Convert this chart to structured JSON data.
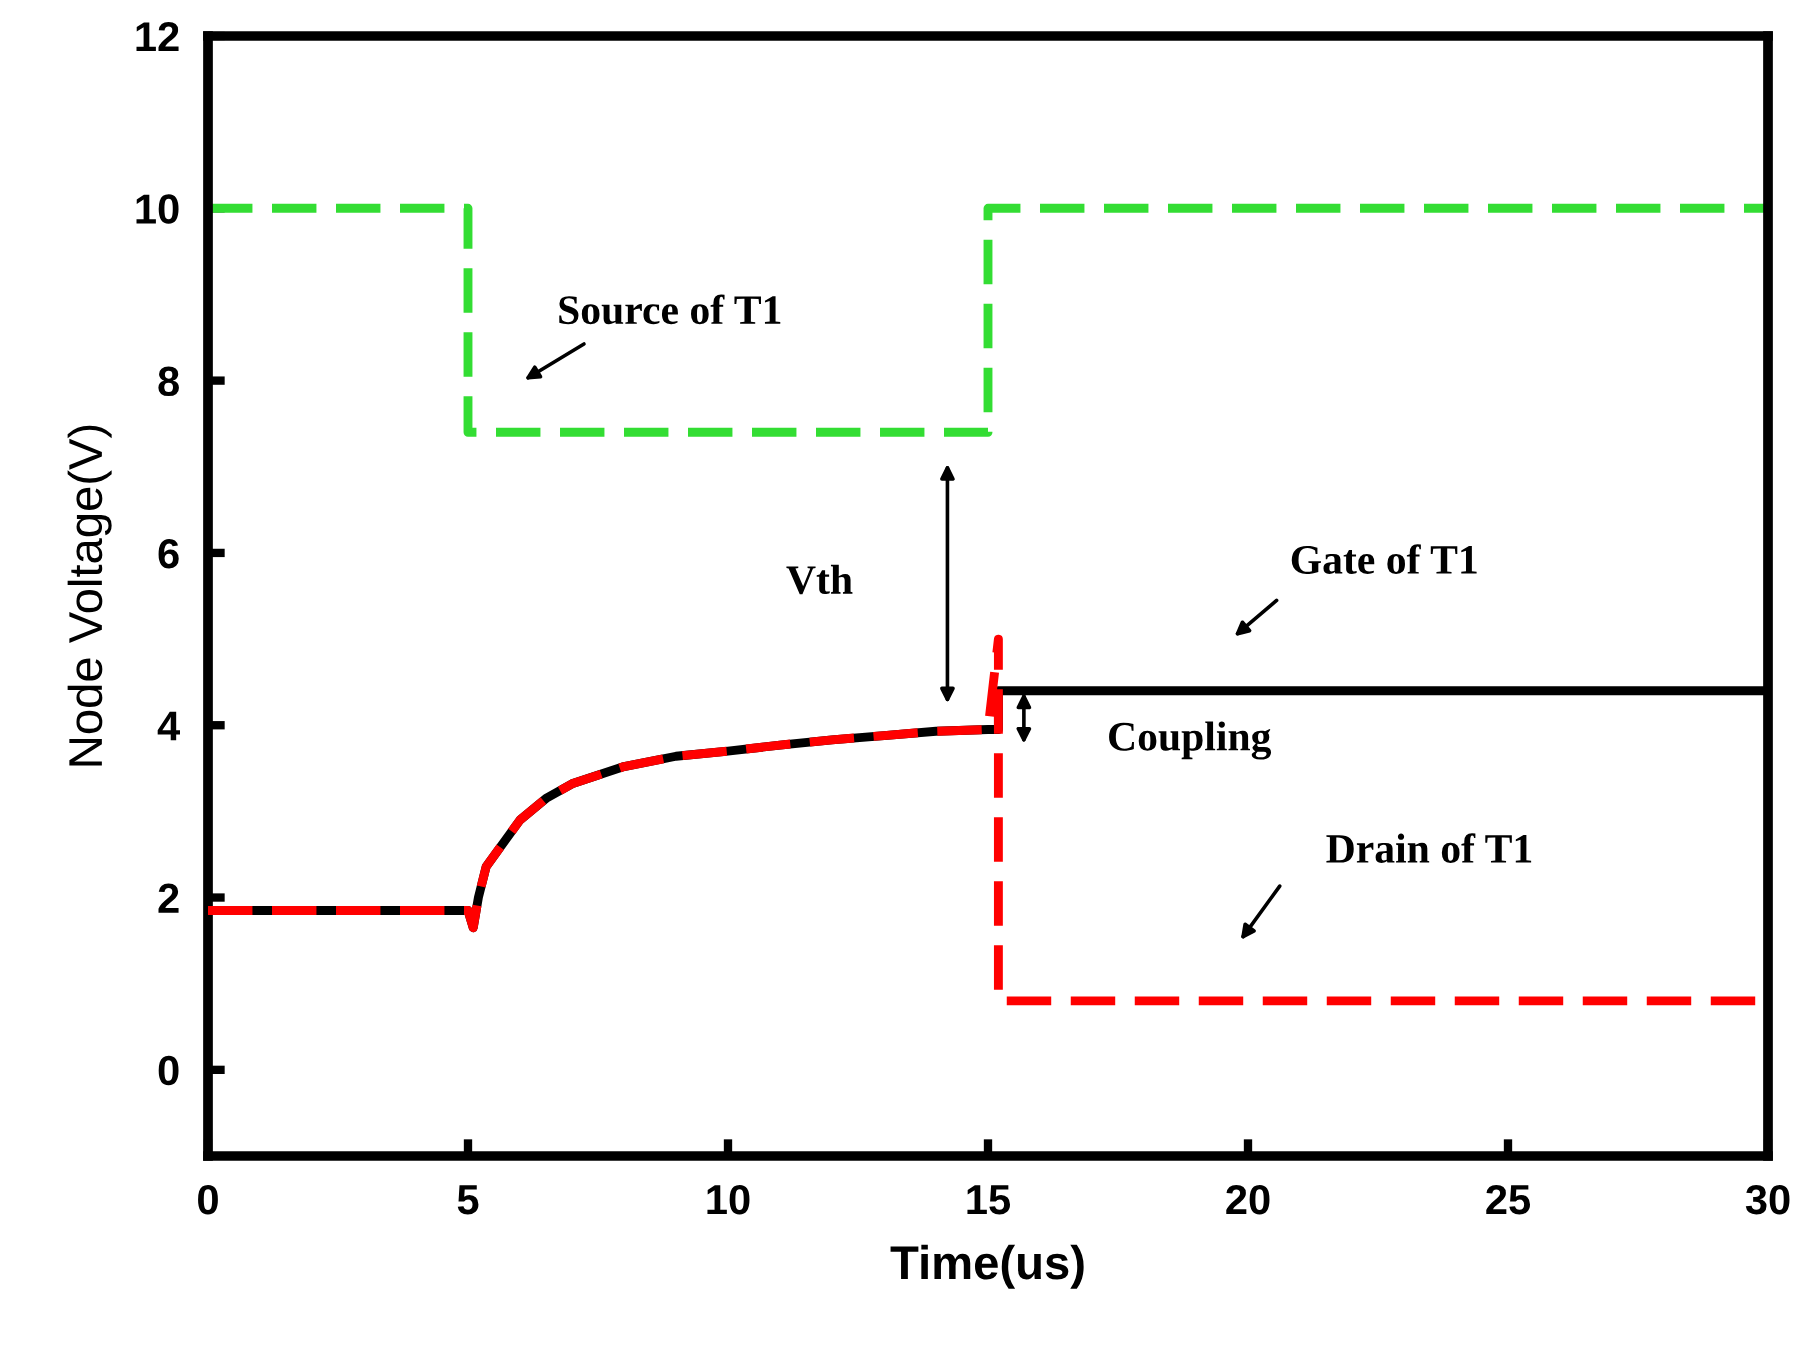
{
  "chart_data": {
    "type": "line",
    "xlabel": "Time(us)",
    "ylabel": "Node Voltage(V)",
    "xlim": [
      0,
      30
    ],
    "ylim": [
      -1,
      12
    ],
    "xticks": [
      0,
      5,
      10,
      15,
      20,
      25,
      30
    ],
    "yticks": [
      0,
      2,
      4,
      6,
      8,
      10,
      12
    ],
    "grid": false,
    "legend": false,
    "series": [
      {
        "color": "#33dd33",
        "line_style": "dashed",
        "x": [
          0,
          5,
          5,
          15,
          15,
          30
        ],
        "values": [
          10,
          10,
          7.4,
          7.4,
          10,
          10
        ]
      },
      {
        "color": "#000000",
        "line_style": "solid",
        "x": [
          0,
          5,
          5.1,
          5.2,
          5.35,
          6,
          6.5,
          7,
          8,
          9,
          10,
          11,
          12,
          13,
          14,
          15,
          15.2,
          15.2,
          30
        ],
        "values": [
          1.85,
          1.85,
          1.65,
          2.0,
          2.36,
          2.9,
          3.15,
          3.32,
          3.52,
          3.64,
          3.7,
          3.77,
          3.83,
          3.88,
          3.93,
          3.95,
          3.95,
          4.4,
          4.4
        ]
      },
      {
        "color": "#ff0000",
        "line_style": "dashed",
        "x": [
          0,
          5,
          5.1,
          5.2,
          5.35,
          6,
          6.5,
          7,
          8,
          9,
          10,
          11,
          12,
          13,
          14,
          15,
          15.2,
          15.2,
          30
        ],
        "values": [
          1.85,
          1.85,
          1.65,
          2.0,
          2.36,
          2.9,
          3.15,
          3.32,
          3.52,
          3.64,
          3.7,
          3.77,
          3.83,
          3.88,
          3.93,
          3.95,
          5.0,
          0.8,
          0.8
        ]
      }
    ],
    "annotations": [
      "Source of T1",
      "Vth",
      "Gate of T1",
      "Coupling",
      "Drain of T1"
    ]
  }
}
